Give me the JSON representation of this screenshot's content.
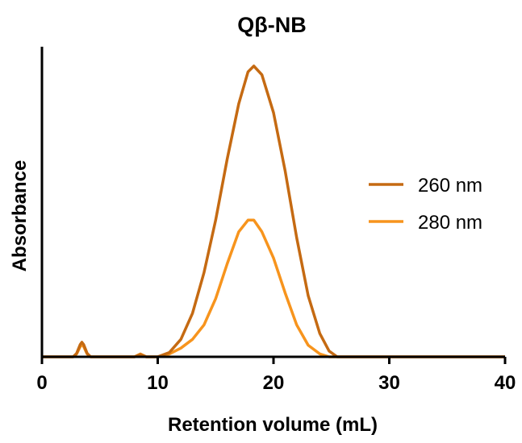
{
  "chart_data": {
    "type": "line",
    "title": "Qβ-NB",
    "xlabel": "Retention volume (mL)",
    "ylabel": "Absorbance",
    "xlim": [
      0,
      40
    ],
    "ylim": [
      0,
      1
    ],
    "x_ticks": [
      "0",
      "10",
      "20",
      "30",
      "40"
    ],
    "y_ticks_shown": false,
    "grid": false,
    "legend_position": "right",
    "series": [
      {
        "name": "260 nm",
        "color": "#C56A12",
        "points": [
          [
            0,
            0
          ],
          [
            2.7,
            0
          ],
          [
            3.0,
            0.012
          ],
          [
            3.3,
            0.042
          ],
          [
            3.45,
            0.05
          ],
          [
            3.6,
            0.042
          ],
          [
            3.9,
            0.012
          ],
          [
            4.2,
            0
          ],
          [
            8.0,
            0
          ],
          [
            8.5,
            0.008
          ],
          [
            9.0,
            0
          ],
          [
            10,
            0
          ],
          [
            11,
            0.015
          ],
          [
            12,
            0.06
          ],
          [
            13,
            0.15
          ],
          [
            14,
            0.29
          ],
          [
            15,
            0.47
          ],
          [
            16,
            0.68
          ],
          [
            17,
            0.87
          ],
          [
            17.8,
            0.98
          ],
          [
            18.3,
            1.0
          ],
          [
            19,
            0.97
          ],
          [
            20,
            0.84
          ],
          [
            21,
            0.64
          ],
          [
            22,
            0.41
          ],
          [
            23,
            0.21
          ],
          [
            24,
            0.08
          ],
          [
            24.8,
            0.02
          ],
          [
            25.5,
            0
          ],
          [
            40,
            0
          ]
        ]
      },
      {
        "name": "280 nm",
        "color": "#F7941D",
        "points": [
          [
            0,
            0
          ],
          [
            2.7,
            0
          ],
          [
            3.0,
            0.01
          ],
          [
            3.3,
            0.035
          ],
          [
            3.45,
            0.042
          ],
          [
            3.6,
            0.035
          ],
          [
            3.9,
            0.01
          ],
          [
            4.2,
            0
          ],
          [
            8.0,
            0
          ],
          [
            8.5,
            0.01
          ],
          [
            9.0,
            0
          ],
          [
            10,
            0
          ],
          [
            11,
            0.01
          ],
          [
            12,
            0.03
          ],
          [
            13,
            0.06
          ],
          [
            14,
            0.11
          ],
          [
            15,
            0.2
          ],
          [
            16,
            0.32
          ],
          [
            17,
            0.43
          ],
          [
            17.8,
            0.47
          ],
          [
            18.3,
            0.47
          ],
          [
            19,
            0.43
          ],
          [
            20,
            0.34
          ],
          [
            21,
            0.22
          ],
          [
            22,
            0.11
          ],
          [
            23,
            0.04
          ],
          [
            24,
            0.01
          ],
          [
            24.8,
            0
          ],
          [
            40,
            0
          ]
        ]
      }
    ]
  }
}
